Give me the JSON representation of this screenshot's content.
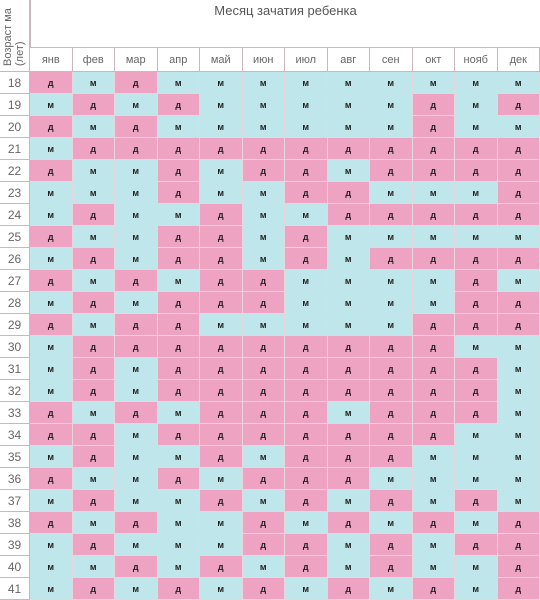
{
  "title": "Месяц зачатия ребенка",
  "age_label": [
    "Возраст ма",
    "(лет)"
  ],
  "months": [
    "янв",
    "фев",
    "мар",
    "апр",
    "май",
    "июн",
    "июл",
    "авг",
    "сен",
    "окт",
    "нояб",
    "дек"
  ],
  "colors": {
    "boy": "#bfe6ea",
    "girl": "#efa3c2",
    "border": "#c9b7c0"
  },
  "rows": [
    {
      "age": "18",
      "values": [
        "д",
        "м",
        "д",
        "м",
        "м",
        "м",
        "м",
        "м",
        "м",
        "м",
        "м",
        "м"
      ]
    },
    {
      "age": "19",
      "values": [
        "м",
        "д",
        "м",
        "д",
        "м",
        "м",
        "м",
        "м",
        "м",
        "д",
        "м",
        "д"
      ]
    },
    {
      "age": "20",
      "values": [
        "д",
        "м",
        "д",
        "м",
        "м",
        "м",
        "м",
        "м",
        "м",
        "д",
        "м",
        "м"
      ]
    },
    {
      "age": "21",
      "values": [
        "м",
        "д",
        "д",
        "д",
        "д",
        "д",
        "д",
        "д",
        "д",
        "д",
        "д",
        "д"
      ]
    },
    {
      "age": "22",
      "values": [
        "д",
        "м",
        "м",
        "д",
        "м",
        "д",
        "д",
        "м",
        "д",
        "д",
        "д",
        "д"
      ]
    },
    {
      "age": "23",
      "values": [
        "м",
        "м",
        "м",
        "д",
        "м",
        "м",
        "д",
        "д",
        "м",
        "м",
        "м",
        "д"
      ]
    },
    {
      "age": "24",
      "values": [
        "м",
        "д",
        "м",
        "м",
        "д",
        "м",
        "м",
        "д",
        "д",
        "д",
        "д",
        "д"
      ]
    },
    {
      "age": "25",
      "values": [
        "д",
        "м",
        "м",
        "д",
        "д",
        "м",
        "д",
        "м",
        "м",
        "м",
        "м",
        "м"
      ]
    },
    {
      "age": "26",
      "values": [
        "м",
        "д",
        "м",
        "д",
        "д",
        "м",
        "д",
        "м",
        "д",
        "д",
        "д",
        "д"
      ]
    },
    {
      "age": "27",
      "values": [
        "д",
        "м",
        "д",
        "м",
        "д",
        "д",
        "м",
        "м",
        "м",
        "м",
        "д",
        "м"
      ]
    },
    {
      "age": "28",
      "values": [
        "м",
        "д",
        "м",
        "д",
        "д",
        "д",
        "м",
        "м",
        "м",
        "м",
        "д",
        "д"
      ]
    },
    {
      "age": "29",
      "values": [
        "д",
        "м",
        "д",
        "д",
        "м",
        "м",
        "м",
        "м",
        "м",
        "д",
        "д",
        "д"
      ]
    },
    {
      "age": "30",
      "values": [
        "м",
        "д",
        "д",
        "д",
        "д",
        "д",
        "д",
        "д",
        "д",
        "д",
        "м",
        "м"
      ]
    },
    {
      "age": "31",
      "values": [
        "м",
        "д",
        "м",
        "д",
        "д",
        "д",
        "д",
        "д",
        "д",
        "д",
        "д",
        "м"
      ]
    },
    {
      "age": "32",
      "values": [
        "м",
        "д",
        "м",
        "д",
        "д",
        "д",
        "д",
        "д",
        "д",
        "д",
        "д",
        "м"
      ]
    },
    {
      "age": "33",
      "values": [
        "д",
        "м",
        "д",
        "м",
        "д",
        "д",
        "д",
        "м",
        "д",
        "д",
        "д",
        "м"
      ]
    },
    {
      "age": "34",
      "values": [
        "д",
        "д",
        "м",
        "д",
        "д",
        "д",
        "д",
        "д",
        "д",
        "д",
        "м",
        "м"
      ]
    },
    {
      "age": "35",
      "values": [
        "м",
        "д",
        "м",
        "м",
        "д",
        "м",
        "д",
        "д",
        "д",
        "м",
        "м",
        "м"
      ]
    },
    {
      "age": "36",
      "values": [
        "д",
        "м",
        "м",
        "д",
        "м",
        "д",
        "д",
        "д",
        "м",
        "м",
        "м",
        "м"
      ]
    },
    {
      "age": "37",
      "values": [
        "м",
        "д",
        "м",
        "м",
        "д",
        "м",
        "д",
        "м",
        "д",
        "м",
        "д",
        "м"
      ]
    },
    {
      "age": "38",
      "values": [
        "д",
        "м",
        "д",
        "м",
        "м",
        "д",
        "м",
        "д",
        "м",
        "д",
        "м",
        "д"
      ]
    },
    {
      "age": "39",
      "values": [
        "м",
        "д",
        "м",
        "м",
        "м",
        "д",
        "д",
        "м",
        "д",
        "м",
        "д",
        "д"
      ]
    },
    {
      "age": "40",
      "values": [
        "м",
        "м",
        "д",
        "м",
        "д",
        "м",
        "д",
        "м",
        "д",
        "м",
        "м",
        "д"
      ]
    },
    {
      "age": "41",
      "values": [
        "м",
        "д",
        "м",
        "д",
        "м",
        "д",
        "м",
        "д",
        "м",
        "д",
        "м",
        "д"
      ]
    }
  ]
}
